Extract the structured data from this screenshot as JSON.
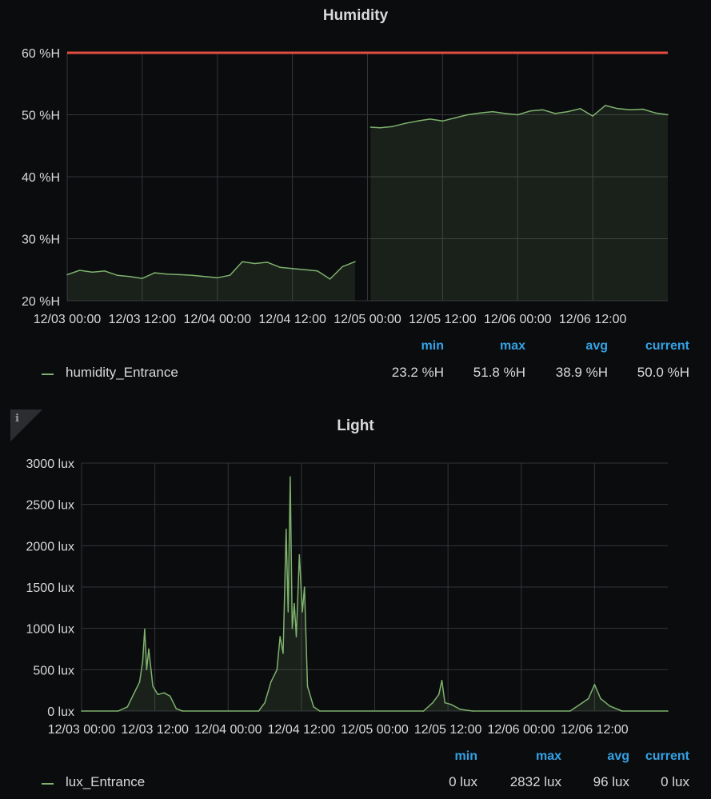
{
  "chart_data": [
    {
      "type": "area",
      "title": "Humidity",
      "unit": "%H",
      "ylim": [
        20,
        60
      ],
      "xlim": [
        "12/03 00:00",
        "12/07 00:00"
      ],
      "y_ticks": [
        "20 %H",
        "30 %H",
        "40 %H",
        "50 %H",
        "60 %H"
      ],
      "x_ticks": [
        "12/03 00:00",
        "12/03 12:00",
        "12/04 00:00",
        "12/04 12:00",
        "12/05 00:00",
        "12/05 12:00",
        "12/06 00:00",
        "12/06 12:00"
      ],
      "threshold": {
        "value": 60,
        "color": "#e24d42"
      },
      "grid": true,
      "legend_placement": "bottom",
      "series": [
        {
          "name": "humidity_Entrance",
          "color": "#7eb26d",
          "points": [
            [
              "12/03 00:00",
              24.2
            ],
            [
              "12/03 02:00",
              24.9
            ],
            [
              "12/03 04:00",
              24.6
            ],
            [
              "12/03 06:00",
              24.8
            ],
            [
              "12/03 08:00",
              24.1
            ],
            [
              "12/03 10:00",
              23.9
            ],
            [
              "12/03 12:00",
              23.6
            ],
            [
              "12/03 14:00",
              24.5
            ],
            [
              "12/03 16:00",
              24.3
            ],
            [
              "12/03 18:00",
              24.2
            ],
            [
              "12/03 20:00",
              24.1
            ],
            [
              "12/03 22:00",
              23.9
            ],
            [
              "12/04 00:00",
              23.7
            ],
            [
              "12/04 02:00",
              24.1
            ],
            [
              "12/04 04:00",
              26.3
            ],
            [
              "12/04 06:00",
              26.0
            ],
            [
              "12/04 08:00",
              26.2
            ],
            [
              "12/04 10:00",
              25.4
            ],
            [
              "12/04 12:00",
              25.2
            ],
            [
              "12/04 14:00",
              25.0
            ],
            [
              "12/04 16:00",
              24.8
            ],
            [
              "12/04 18:00",
              23.5
            ],
            [
              "12/04 20:00",
              25.5
            ],
            [
              "12/04 22:00",
              26.3
            ],
            [
              "12/05 00:30",
              48.0
            ],
            [
              "12/05 02:00",
              47.9
            ],
            [
              "12/05 04:00",
              48.1
            ],
            [
              "12/05 06:00",
              48.6
            ],
            [
              "12/05 08:00",
              49.0
            ],
            [
              "12/05 10:00",
              49.3
            ],
            [
              "12/05 12:00",
              49.0
            ],
            [
              "12/05 14:00",
              49.5
            ],
            [
              "12/05 16:00",
              50.0
            ],
            [
              "12/05 18:00",
              50.3
            ],
            [
              "12/05 20:00",
              50.5
            ],
            [
              "12/05 22:00",
              50.2
            ],
            [
              "12/06 00:00",
              50.0
            ],
            [
              "12/06 02:00",
              50.6
            ],
            [
              "12/06 04:00",
              50.8
            ],
            [
              "12/06 06:00",
              50.2
            ],
            [
              "12/06 08:00",
              50.5
            ],
            [
              "12/06 10:00",
              51.0
            ],
            [
              "12/06 12:00",
              49.8
            ],
            [
              "12/06 14:00",
              51.5
            ],
            [
              "12/06 16:00",
              51.0
            ],
            [
              "12/06 18:00",
              50.8
            ],
            [
              "12/06 20:00",
              50.9
            ],
            [
              "12/06 22:00",
              50.3
            ],
            [
              "12/07 00:00",
              50.0
            ]
          ],
          "min": "23.2 %H",
          "max": "51.8 %H",
          "avg": "38.9 %H",
          "current": "50.0 %H"
        }
      ]
    },
    {
      "type": "area",
      "title": "Light",
      "unit": "lux",
      "ylim": [
        0,
        3000
      ],
      "xlim": [
        "12/03 00:00",
        "12/07 00:00"
      ],
      "y_ticks": [
        "0 lux",
        "500 lux",
        "1000 lux",
        "1500 lux",
        "2000 lux",
        "2500 lux",
        "3000 lux"
      ],
      "x_ticks": [
        "12/03 00:00",
        "12/03 12:00",
        "12/04 00:00",
        "12/04 12:00",
        "12/05 00:00",
        "12/05 12:00",
        "12/06 00:00",
        "12/06 12:00"
      ],
      "grid": true,
      "legend_placement": "bottom",
      "series": [
        {
          "name": "lux_Entrance",
          "color": "#7eb26d",
          "points": [
            [
              "12/03 00:00",
              0
            ],
            [
              "12/03 06:00",
              0
            ],
            [
              "12/03 07:30",
              50
            ],
            [
              "12/03 08:30",
              200
            ],
            [
              "12/03 09:30",
              350
            ],
            [
              "12/03 10:00",
              600
            ],
            [
              "12/03 10:20",
              990
            ],
            [
              "12/03 10:40",
              500
            ],
            [
              "12/03 11:00",
              750
            ],
            [
              "12/03 11:40",
              300
            ],
            [
              "12/03 12:30",
              200
            ],
            [
              "12/03 13:30",
              220
            ],
            [
              "12/03 14:30",
              180
            ],
            [
              "12/03 15:30",
              30
            ],
            [
              "12/03 16:30",
              0
            ],
            [
              "12/04 05:00",
              0
            ],
            [
              "12/04 06:00",
              100
            ],
            [
              "12/04 07:00",
              350
            ],
            [
              "12/04 08:00",
              500
            ],
            [
              "12/04 08:30",
              900
            ],
            [
              "12/04 09:00",
              700
            ],
            [
              "12/04 09:30",
              2200
            ],
            [
              "12/04 09:50",
              1200
            ],
            [
              "12/04 10:10",
              2832
            ],
            [
              "12/04 10:30",
              1000
            ],
            [
              "12/04 10:50",
              1300
            ],
            [
              "12/04 11:10",
              900
            ],
            [
              "12/04 11:40",
              1890
            ],
            [
              "12/04 12:10",
              1200
            ],
            [
              "12/04 12:30",
              1500
            ],
            [
              "12/04 13:00",
              300
            ],
            [
              "12/04 14:00",
              50
            ],
            [
              "12/04 15:00",
              0
            ],
            [
              "12/05 08:00",
              0
            ],
            [
              "12/05 09:30",
              100
            ],
            [
              "12/05 10:30",
              200
            ],
            [
              "12/05 11:00",
              370
            ],
            [
              "12/05 11:30",
              100
            ],
            [
              "12/05 12:30",
              80
            ],
            [
              "12/05 14:00",
              20
            ],
            [
              "12/05 16:00",
              0
            ],
            [
              "12/06 08:00",
              0
            ],
            [
              "12/06 10:00",
              100
            ],
            [
              "12/06 11:00",
              150
            ],
            [
              "12/06 12:00",
              320
            ],
            [
              "12/06 13:00",
              150
            ],
            [
              "12/06 14:30",
              60
            ],
            [
              "12/06 16:30",
              0
            ],
            [
              "12/07 00:00",
              0
            ]
          ],
          "min": "0 lux",
          "max": "2832 lux",
          "avg": "96 lux",
          "current": "0 lux"
        }
      ]
    }
  ],
  "legend_headers": {
    "min": "min",
    "max": "max",
    "avg": "avg",
    "current": "current"
  },
  "info_icon_glyph": "i"
}
